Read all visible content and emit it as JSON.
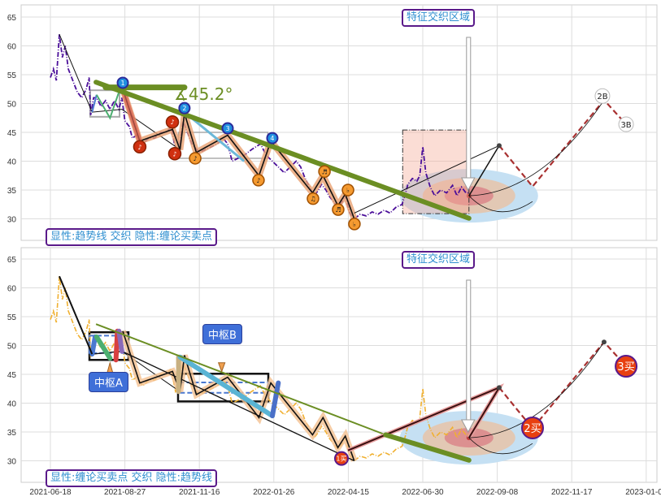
{
  "chart_data": [
    {
      "type": "line",
      "panel": "top",
      "xlabel": "",
      "ylabel": "",
      "ylim": [
        26.3,
        67.1
      ],
      "xlim": [
        -19.7,
        407
      ],
      "yticks": [
        30,
        35,
        40,
        45,
        50,
        55,
        60,
        65
      ],
      "legend_text": "显性:趋势线 交织 隐性:缠论买卖点",
      "region_label": "特征交织区域",
      "angle_label": "∡45.2°",
      "price_color": "#4b0f9a"
    },
    {
      "type": "line",
      "panel": "bottom",
      "ylim": [
        26.3,
        67.1
      ],
      "xlim": [
        -19.7,
        407
      ],
      "yticks": [
        30,
        35,
        40,
        45,
        50,
        55,
        60,
        65
      ],
      "xticks": [
        {
          "i": 0,
          "label": "2021-06-18"
        },
        {
          "i": 50,
          "label": "2021-08-27"
        },
        {
          "i": 100,
          "label": "2021-11-16"
        },
        {
          "i": 150,
          "label": "2022-01-26"
        },
        {
          "i": 200,
          "label": "2022-04-15"
        },
        {
          "i": 250,
          "label": "2022-06-30"
        },
        {
          "i": 300,
          "label": "2022-09-08"
        },
        {
          "i": 350,
          "label": "2022-11-17"
        },
        {
          "i": 400,
          "label": "2023-01-09"
        }
      ],
      "legend_text": "显性:缠论买卖点 交织 隐性:趋势线",
      "region_label": "特征交织区域",
      "zhongshu_a": "中枢A",
      "zhongshu_b": "中枢B",
      "buy_points": [
        "1买",
        "2买",
        "3买"
      ],
      "price_color": "#f0b030"
    }
  ],
  "series": {
    "price": [
      [
        0,
        54.5
      ],
      [
        2,
        56
      ],
      [
        4,
        54
      ],
      [
        6,
        62
      ],
      [
        8,
        58
      ],
      [
        10,
        60
      ],
      [
        12,
        56
      ],
      [
        15,
        54
      ],
      [
        18,
        52
      ],
      [
        21,
        51
      ],
      [
        24,
        52.5
      ],
      [
        26,
        54.5
      ],
      [
        27,
        48
      ],
      [
        29,
        51
      ],
      [
        31,
        51
      ],
      [
        34,
        49.5
      ],
      [
        37,
        50.5
      ],
      [
        40,
        49
      ],
      [
        43,
        50.5
      ],
      [
        46,
        49
      ],
      [
        48,
        51
      ],
      [
        50,
        47
      ],
      [
        53,
        46
      ],
      [
        55,
        44
      ],
      [
        58,
        44.5
      ],
      [
        62,
        43
      ],
      [
        66,
        44
      ],
      [
        70,
        44
      ],
      [
        74,
        45
      ],
      [
        78,
        45
      ],
      [
        81,
        46
      ],
      [
        84,
        42
      ],
      [
        87,
        43
      ],
      [
        89,
        47
      ],
      [
        92,
        45
      ],
      [
        95,
        43
      ],
      [
        100,
        41.5
      ],
      [
        104,
        42
      ],
      [
        108,
        42.5
      ],
      [
        112,
        43
      ],
      [
        116,
        44
      ],
      [
        119,
        43
      ],
      [
        122,
        40
      ],
      [
        126,
        40.5
      ],
      [
        130,
        41
      ],
      [
        135,
        42
      ],
      [
        141,
        43
      ],
      [
        145,
        41
      ],
      [
        149,
        40
      ],
      [
        153,
        39
      ],
      [
        157,
        38
      ],
      [
        161,
        39
      ],
      [
        165,
        40
      ],
      [
        168,
        39
      ],
      [
        171,
        37
      ],
      [
        174,
        35.5
      ],
      [
        177,
        34
      ],
      [
        180,
        35
      ],
      [
        182,
        36
      ],
      [
        185,
        35
      ],
      [
        187,
        34
      ],
      [
        190,
        33
      ],
      [
        193,
        32
      ],
      [
        196,
        33
      ],
      [
        198,
        34
      ],
      [
        201,
        31
      ],
      [
        204,
        30
      ],
      [
        208,
        30.8
      ],
      [
        212,
        30.5
      ],
      [
        216,
        31.2
      ],
      [
        220,
        30.8
      ],
      [
        224,
        31.5
      ],
      [
        228,
        31
      ],
      [
        232,
        32
      ],
      [
        236,
        32.5
      ],
      [
        238,
        34
      ],
      [
        240,
        36
      ],
      [
        243,
        37
      ],
      [
        246,
        36.5
      ],
      [
        248,
        37.5
      ],
      [
        250,
        42.5
      ],
      [
        252,
        38
      ],
      [
        255,
        35.5
      ],
      [
        258,
        34
      ],
      [
        262,
        35
      ],
      [
        266,
        34.5
      ],
      [
        270,
        35.8
      ],
      [
        273,
        34
      ],
      [
        276,
        35.5
      ],
      [
        279,
        34.5
      ],
      [
        281,
        34.5
      ]
    ],
    "strokes": [
      [
        48.6,
        52.5
      ],
      [
        60,
        43.5
      ],
      [
        82,
        45.5
      ],
      [
        87,
        42
      ],
      [
        90,
        48.3
      ],
      [
        98,
        41.5
      ],
      [
        119,
        44.5
      ],
      [
        140,
        37.5
      ],
      [
        148,
        43.5
      ],
      [
        176,
        34.5
      ],
      [
        183,
        37.5
      ],
      [
        193,
        32.3
      ],
      [
        198,
        34.3
      ],
      [
        204,
        30
      ]
    ],
    "trend": [
      [
        30.6,
        53.7
      ],
      [
        281,
        30.1
      ]
    ],
    "resistance": [
      [
        37,
        52.8
      ],
      [
        90,
        52.8
      ]
    ],
    "projection": [
      [
        281,
        34
      ],
      [
        301.3,
        42.7
      ],
      [
        323.7,
        35.6
      ],
      [
        371.7,
        50.6
      ],
      [
        386.5,
        46.4
      ]
    ],
    "blue_points": [
      {
        "i": 48.6,
        "v": 53.6,
        "t": "1"
      },
      {
        "i": 90,
        "v": 49.2,
        "t": "2"
      },
      {
        "i": 119,
        "v": 45.7,
        "t": "3"
      },
      {
        "i": 149,
        "v": 44,
        "t": "4"
      }
    ],
    "red_points": [
      {
        "i": 60,
        "v": 42.5,
        "t": "♪"
      },
      {
        "i": 81.9,
        "v": 46.8,
        "t": "♪"
      },
      {
        "i": 83.5,
        "v": 41.3,
        "t": "♪"
      }
    ],
    "orange_points": [
      {
        "i": 97.2,
        "v": 40.5,
        "t": "♪"
      },
      {
        "i": 139.7,
        "v": 36.7,
        "t": "♪"
      },
      {
        "i": 176.3,
        "v": 33.5,
        "t": "♫"
      },
      {
        "i": 184,
        "v": 38.2,
        "t": "♬"
      },
      {
        "i": 193.2,
        "v": 31.6,
        "t": "♬"
      },
      {
        "i": 199.8,
        "v": 35,
        "t": "♭"
      },
      {
        "i": 204.1,
        "v": 29.1,
        "t": "♭"
      }
    ],
    "proj_labels": [
      "2B",
      "3B"
    ]
  }
}
